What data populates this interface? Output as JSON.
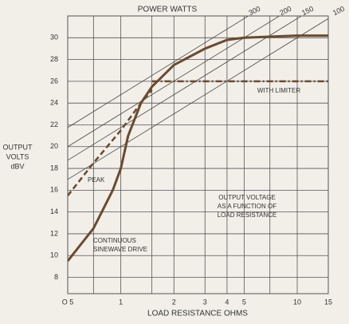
{
  "chart_data": {
    "type": "line",
    "title": "POWER WATTS",
    "x_label": "LOAD RESISTANCE OHMS",
    "y_label": [
      "OUTPUT",
      "VOLTS",
      "dBV"
    ],
    "log_x": true,
    "xlim": [
      0.5,
      15
    ],
    "xticks": [
      {
        "value": 0.5,
        "label": "O 5"
      },
      1,
      2,
      3,
      4,
      5,
      10,
      15
    ],
    "xminor": [
      0.7,
      1.5,
      7
    ],
    "ylim": [
      6.5,
      32
    ],
    "yticks": [
      8,
      10,
      12,
      14,
      16,
      18,
      20,
      22,
      24,
      26,
      28,
      30
    ],
    "grid": true,
    "power_lines": {
      "color": "#444",
      "values": [
        300,
        200,
        150,
        100
      ]
    },
    "series": [
      {
        "name": "CONTINUOUS SINEWAVE DRIVE",
        "color": "#6b4a2e",
        "style": "solid",
        "x": [
          0.5,
          0.7,
          0.9,
          1,
          1.1,
          1.3,
          1.5,
          2,
          3,
          4,
          5,
          10,
          15
        ],
        "values": [
          9.5,
          12.5,
          16,
          18,
          21,
          24,
          25.5,
          27.5,
          29,
          29.8,
          30,
          30.2,
          30.2
        ]
      },
      {
        "name": "PEAK",
        "color": "#6b4a2e",
        "style": "dashed",
        "x": [
          0.5,
          0.7,
          1,
          1.3,
          1.5
        ],
        "values": [
          15.5,
          18.5,
          21.5,
          24,
          25.2
        ]
      },
      {
        "name": "WITH LIMITER",
        "color": "#6b4a2e",
        "style": "dashdot",
        "x": [
          1.5,
          15
        ],
        "values": [
          26,
          26
        ]
      }
    ],
    "annotations": [
      {
        "text": [
          "PEAK"
        ]
      },
      {
        "text": [
          "WITH LIMITER"
        ]
      },
      {
        "text": [
          "CONTINUOUS",
          "SINEWAVE DRIVE"
        ]
      },
      {
        "text": [
          "OUTPUT VOLTAGE",
          "AS A FUNCTION OF",
          "LOAD RESISTANCE"
        ]
      }
    ]
  }
}
